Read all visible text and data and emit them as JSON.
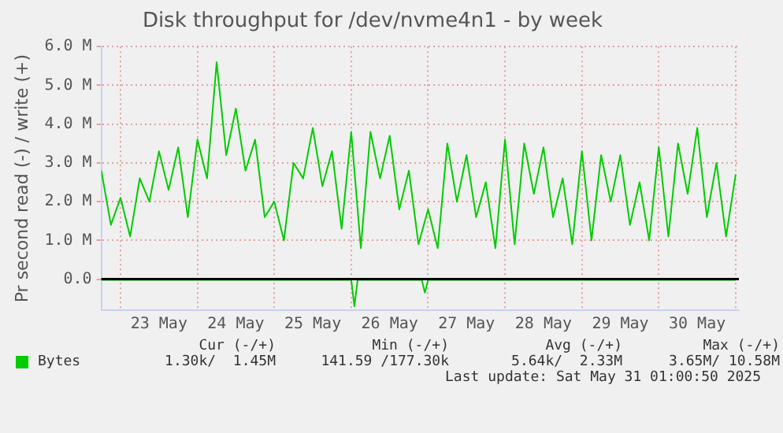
{
  "chart_data": {
    "type": "line",
    "title": "Disk throughput for /dev/nvme4n1 - by week",
    "ylabel": "Pr second read (-) / write (+)",
    "x": [
      "2025-05-22T18:00",
      "2025-05-22T21:00",
      "2025-05-23T00:00",
      "2025-05-23T03:00",
      "2025-05-23T06:00",
      "2025-05-23T09:00",
      "2025-05-23T12:00",
      "2025-05-23T15:00",
      "2025-05-23T18:00",
      "2025-05-23T21:00",
      "2025-05-24T00:00",
      "2025-05-24T03:00",
      "2025-05-24T06:00",
      "2025-05-24T09:00",
      "2025-05-24T12:00",
      "2025-05-24T15:00",
      "2025-05-24T18:00",
      "2025-05-24T21:00",
      "2025-05-25T00:00",
      "2025-05-25T03:00",
      "2025-05-25T06:00",
      "2025-05-25T09:00",
      "2025-05-25T12:00",
      "2025-05-25T15:00",
      "2025-05-25T18:00",
      "2025-05-25T21:00",
      "2025-05-26T00:00",
      "2025-05-26T03:00",
      "2025-05-26T06:00",
      "2025-05-26T09:00",
      "2025-05-26T12:00",
      "2025-05-26T15:00",
      "2025-05-26T18:00",
      "2025-05-26T21:00",
      "2025-05-27T00:00",
      "2025-05-27T03:00",
      "2025-05-27T06:00",
      "2025-05-27T09:00",
      "2025-05-27T12:00",
      "2025-05-27T15:00",
      "2025-05-27T18:00",
      "2025-05-27T21:00",
      "2025-05-28T00:00",
      "2025-05-28T03:00",
      "2025-05-28T06:00",
      "2025-05-28T09:00",
      "2025-05-28T12:00",
      "2025-05-28T15:00",
      "2025-05-28T18:00",
      "2025-05-28T21:00",
      "2025-05-29T00:00",
      "2025-05-29T03:00",
      "2025-05-29T06:00",
      "2025-05-29T09:00",
      "2025-05-29T12:00",
      "2025-05-29T15:00",
      "2025-05-29T18:00",
      "2025-05-29T21:00",
      "2025-05-30T00:00",
      "2025-05-30T03:00",
      "2025-05-30T06:00",
      "2025-05-30T09:00",
      "2025-05-30T12:00",
      "2025-05-30T15:00",
      "2025-05-30T18:00",
      "2025-05-30T21:00",
      "2025-05-31T00:00"
    ],
    "series": [
      {
        "name": "Bytes",
        "color": "#00cc00",
        "values": [
          2.8,
          1.4,
          2.1,
          1.1,
          2.6,
          2.0,
          3.3,
          2.3,
          3.4,
          1.6,
          3.6,
          2.6,
          5.6,
          3.2,
          4.4,
          2.8,
          3.6,
          1.6,
          2.0,
          1.0,
          3.0,
          2.6,
          3.9,
          2.4,
          3.3,
          1.3,
          3.8,
          0.8,
          3.8,
          2.6,
          3.7,
          1.8,
          2.8,
          0.9,
          1.8,
          0.8,
          3.5,
          2.0,
          3.2,
          1.6,
          2.5,
          0.8,
          3.6,
          0.9,
          3.5,
          2.2,
          3.4,
          1.6,
          2.6,
          0.9,
          3.3,
          1.0,
          3.2,
          2.0,
          3.2,
          1.4,
          2.5,
          1.0,
          3.4,
          1.1,
          3.5,
          2.2,
          3.9,
          1.6,
          3.0,
          1.1,
          2.7
        ]
      },
      {
        "color": "#00cc00",
        "x": [
          "2025-05-22T18:00",
          "2025-05-26T00:00",
          "2025-05-26T01:00",
          "2025-05-26T02:00",
          "2025-05-26T22:00",
          "2025-05-26T23:00",
          "2025-05-27T00:00",
          "2025-05-31T00:00"
        ],
        "values": [
          -0.02,
          -0.02,
          -0.7,
          -0.02,
          -0.02,
          -0.35,
          -0.02,
          -0.02
        ]
      }
    ],
    "xlim": [
      "2025-05-22T18:00",
      "2025-05-31T01:00"
    ],
    "xticks": [
      {
        "value": "2025-05-23T00:00",
        "label": null
      },
      {
        "value": "2025-05-23T12:00",
        "label": "23 May"
      },
      {
        "value": "2025-05-24T00:00",
        "label": null
      },
      {
        "value": "2025-05-24T12:00",
        "label": "24 May"
      },
      {
        "value": "2025-05-25T00:00",
        "label": null
      },
      {
        "value": "2025-05-25T12:00",
        "label": "25 May"
      },
      {
        "value": "2025-05-26T00:00",
        "label": null
      },
      {
        "value": "2025-05-26T12:00",
        "label": "26 May"
      },
      {
        "value": "2025-05-27T00:00",
        "label": null
      },
      {
        "value": "2025-05-27T12:00",
        "label": "27 May"
      },
      {
        "value": "2025-05-28T00:00",
        "label": null
      },
      {
        "value": "2025-05-28T12:00",
        "label": "28 May"
      },
      {
        "value": "2025-05-29T00:00",
        "label": null
      },
      {
        "value": "2025-05-29T12:00",
        "label": "29 May"
      },
      {
        "value": "2025-05-30T00:00",
        "label": null
      },
      {
        "value": "2025-05-30T12:00",
        "label": "30 May"
      },
      {
        "value": "2025-05-31T00:00",
        "label": null
      }
    ],
    "ylim": [
      -0.8,
      6.0
    ],
    "yticks": [
      {
        "value": 0,
        "label": "0.0"
      },
      {
        "value": 1,
        "label": "1.0 M"
      },
      {
        "value": 2,
        "label": "2.0 M"
      },
      {
        "value": 3,
        "label": "3.0 M"
      },
      {
        "value": 4,
        "label": "4.0 M"
      },
      {
        "value": 5,
        "label": "5.0 M"
      },
      {
        "value": 6,
        "label": "6.0 M"
      }
    ],
    "ref_lines": [
      {
        "axis": "y",
        "value": 0,
        "color": "#000000"
      }
    ],
    "grid": true,
    "legend": "bottom",
    "marker": "none",
    "line_style": "solid",
    "annotations": [
      "Cur (-/+)",
      "Min (-/+)",
      "Avg (-/+)",
      "Max (-/+)",
      "1.30k/  1.45M",
      "141.59 /177.30k",
      "5.64k/  2.33M",
      "3.65M/ 10.58M",
      "Last update: Sat May 31 01:00:50 2025"
    ]
  }
}
